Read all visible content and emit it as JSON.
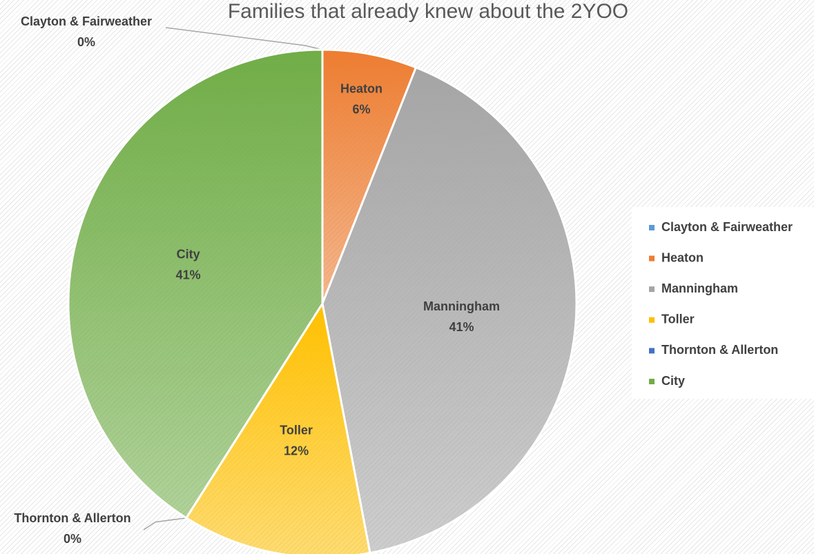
{
  "chart_data": {
    "type": "pie",
    "title": "Families that already knew about the 2YOO",
    "categories": [
      "Clayton & Fairweather",
      "Heaton",
      "Manningham",
      "Toller",
      "Thornton & Allerton",
      "City"
    ],
    "values": [
      0,
      6,
      41,
      12,
      0,
      41
    ],
    "value_labels": [
      "0%",
      "6%",
      "41%",
      "12%",
      "0%",
      "41%"
    ],
    "colors": [
      "#5b9bd5",
      "#ed7d31",
      "#a5a5a5",
      "#ffc000",
      "#4472c4",
      "#70ad47"
    ],
    "legend": "right"
  }
}
